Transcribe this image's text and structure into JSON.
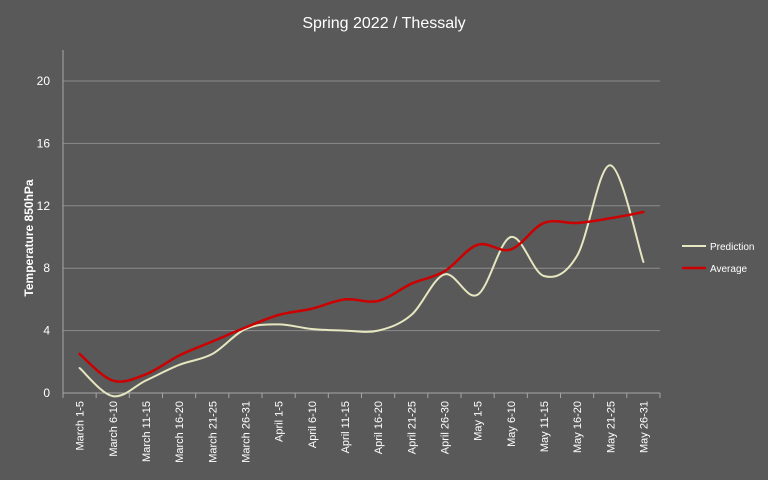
{
  "chart_data": {
    "type": "line",
    "title": "Spring 2022 / Thessaly",
    "xlabel": "",
    "ylabel": "Temperature 850hPa",
    "ylim": [
      0,
      20
    ],
    "yticks": [
      0,
      4,
      8,
      12,
      16,
      20
    ],
    "grid": true,
    "legend_position": "right",
    "categories": [
      "March 1-5",
      "March 6-10",
      "March 11-15",
      "March 16-20",
      "March 21-25",
      "March 26-31",
      "April 1-5",
      "April 6-10",
      "April 11-15",
      "April 16-20",
      "April 21-25",
      "April 26-30",
      "May 1-5",
      "May 6-10",
      "May 11-15",
      "May 16-20",
      "May 21-25",
      "May 26-31"
    ],
    "series": [
      {
        "name": "Prediction",
        "color": "#e6e6c0",
        "values": [
          1.6,
          -0.2,
          0.8,
          1.8,
          2.5,
          4.1,
          4.4,
          4.1,
          4.0,
          4.0,
          5.0,
          7.6,
          6.3,
          10.0,
          7.5,
          8.8,
          14.6,
          8.4
        ]
      },
      {
        "name": "Average",
        "color": "#cc0000",
        "values": [
          2.5,
          0.8,
          1.2,
          2.4,
          3.3,
          4.2,
          5.0,
          5.4,
          6.0,
          5.9,
          7.0,
          7.8,
          9.5,
          9.2,
          10.9,
          10.9,
          11.2,
          11.6
        ]
      }
    ]
  }
}
